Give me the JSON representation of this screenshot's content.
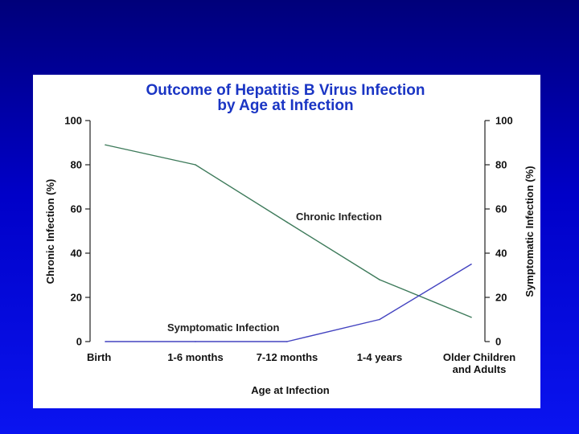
{
  "chart_data": {
    "type": "line",
    "title_lines": [
      "Outcome of Hepatitis B Virus Infection",
      "by Age at Infection"
    ],
    "xlabel": "Age at Infection",
    "ylabel_left": "Chronic Infection (%)",
    "ylabel_right": "Symptomatic Infection (%)",
    "categories": [
      [
        "Birth"
      ],
      [
        "1-6 months"
      ],
      [
        "7-12 months"
      ],
      [
        "1-4 years"
      ],
      [
        "Older Children",
        "and Adults"
      ]
    ],
    "ylim": [
      0,
      100
    ],
    "yticks": [
      0,
      20,
      40,
      60,
      80,
      100
    ],
    "grid": false,
    "legend": "none",
    "series": [
      {
        "name": "Chronic Infection",
        "color": "#3d7a5a",
        "axis": "left",
        "values": [
          89,
          80,
          54,
          28,
          11
        ]
      },
      {
        "name": "Symptomatic Infection",
        "color": "#4343c0",
        "axis": "right",
        "values": [
          0,
          0,
          0,
          10,
          35
        ]
      }
    ]
  }
}
